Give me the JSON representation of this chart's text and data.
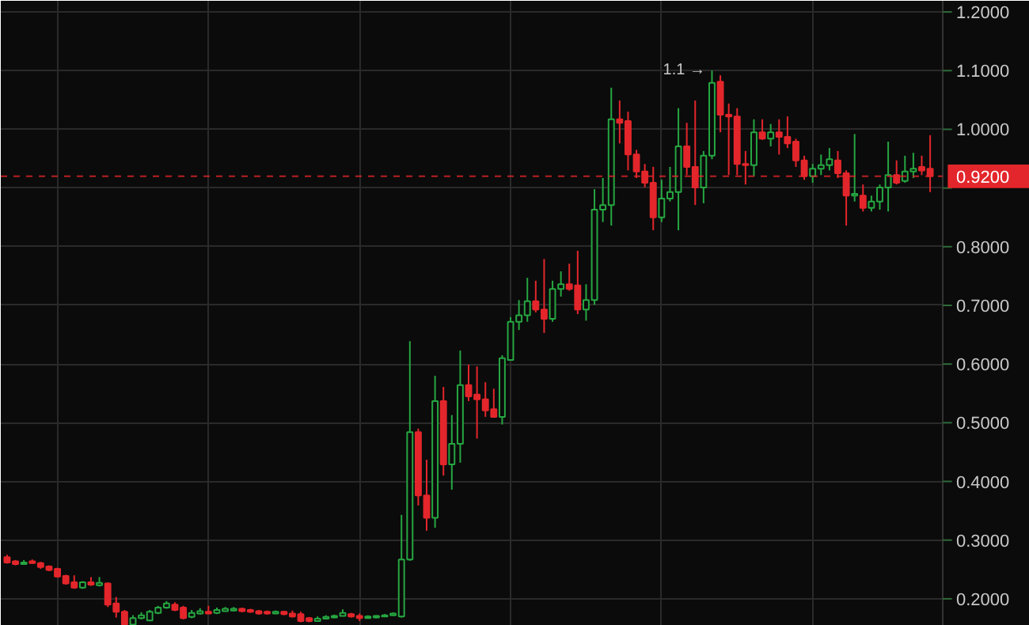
{
  "chart_data": {
    "type": "candlestick",
    "categories": [
      null,
      null,
      null,
      null,
      null,
      null,
      null,
      null,
      null,
      null,
      null,
      null,
      null,
      null,
      null,
      null,
      null,
      null,
      null,
      null,
      null,
      null,
      null,
      null,
      null,
      null,
      null,
      null,
      null,
      null,
      null,
      null,
      null,
      null,
      null,
      null,
      null,
      null,
      null,
      null,
      null,
      null,
      null,
      null,
      null,
      null,
      null,
      null,
      null,
      null,
      null,
      null,
      null,
      null,
      null,
      null,
      null,
      null,
      null,
      null,
      null,
      null,
      null,
      null,
      null,
      null,
      null,
      null,
      null,
      null,
      null,
      null,
      null,
      null,
      null,
      null,
      null,
      null,
      null,
      null,
      null,
      null,
      null,
      null,
      null,
      null,
      null,
      null,
      null,
      null,
      null,
      null,
      null,
      null,
      null,
      null,
      null,
      null,
      null,
      null,
      null,
      null,
      null,
      null,
      null,
      null,
      null,
      null,
      null,
      null,
      null
    ],
    "ohlc": [
      [
        0.271,
        0.275,
        0.26,
        0.262
      ],
      [
        0.264,
        0.266,
        0.257,
        0.259
      ],
      [
        0.259,
        0.266,
        0.258,
        0.262
      ],
      [
        0.264,
        0.267,
        0.26,
        0.261
      ],
      [
        0.261,
        0.263,
        0.251,
        0.254
      ],
      [
        0.255,
        0.257,
        0.247,
        0.249
      ],
      [
        0.251,
        0.253,
        0.236,
        0.238
      ],
      [
        0.239,
        0.241,
        0.224,
        0.226
      ],
      [
        0.228,
        0.24,
        0.217,
        0.219
      ],
      [
        0.219,
        0.23,
        0.217,
        0.228
      ],
      [
        0.228,
        0.237,
        0.222,
        0.224
      ],
      [
        0.223,
        0.237,
        0.221,
        0.227
      ],
      [
        0.226,
        0.228,
        0.186,
        0.19
      ],
      [
        0.192,
        0.203,
        0.168,
        0.178
      ],
      [
        0.178,
        0.181,
        0.155,
        0.156
      ],
      [
        0.156,
        0.172,
        0.155,
        0.167
      ],
      [
        0.167,
        0.177,
        0.165,
        0.172
      ],
      [
        0.163,
        0.181,
        0.162,
        0.178
      ],
      [
        0.176,
        0.188,
        0.174,
        0.185
      ],
      [
        0.185,
        0.196,
        0.183,
        0.192
      ],
      [
        0.19,
        0.194,
        0.179,
        0.181
      ],
      [
        0.185,
        0.188,
        0.165,
        0.167
      ],
      [
        0.169,
        0.181,
        0.167,
        0.176
      ],
      [
        0.175,
        0.184,
        0.173,
        0.179
      ],
      [
        0.178,
        0.188,
        0.174,
        0.175
      ],
      [
        0.176,
        0.185,
        0.174,
        0.181
      ],
      [
        0.179,
        0.186,
        0.178,
        0.183
      ],
      [
        0.18,
        0.186,
        0.179,
        0.183
      ],
      [
        0.183,
        0.185,
        0.177,
        0.179
      ],
      [
        0.181,
        0.183,
        0.176,
        0.178
      ],
      [
        0.179,
        0.181,
        0.173,
        0.175
      ],
      [
        0.178,
        0.18,
        0.173,
        0.175
      ],
      [
        0.175,
        0.18,
        0.174,
        0.178
      ],
      [
        0.178,
        0.179,
        0.172,
        0.174
      ],
      [
        0.175,
        0.18,
        0.168,
        0.17
      ],
      [
        0.174,
        0.178,
        0.16,
        0.162
      ],
      [
        0.167,
        0.169,
        0.16,
        0.162
      ],
      [
        0.162,
        0.17,
        0.161,
        0.166
      ],
      [
        0.166,
        0.172,
        0.165,
        0.169
      ],
      [
        0.168,
        0.173,
        0.167,
        0.171
      ],
      [
        0.171,
        0.182,
        0.17,
        0.176
      ],
      [
        0.174,
        0.176,
        0.168,
        0.17
      ],
      [
        0.171,
        0.175,
        0.162,
        0.167
      ],
      [
        0.167,
        0.172,
        0.166,
        0.17
      ],
      [
        0.168,
        0.172,
        0.167,
        0.171
      ],
      [
        0.17,
        0.174,
        0.169,
        0.172
      ],
      [
        0.172,
        0.177,
        0.171,
        0.175
      ],
      [
        0.17,
        0.343,
        0.168,
        0.267
      ],
      [
        0.267,
        0.639,
        0.265,
        0.484
      ],
      [
        0.484,
        0.49,
        0.359,
        0.376
      ],
      [
        0.376,
        0.437,
        0.316,
        0.338
      ],
      [
        0.338,
        0.58,
        0.321,
        0.537
      ],
      [
        0.537,
        0.561,
        0.41,
        0.429
      ],
      [
        0.429,
        0.513,
        0.386,
        0.464
      ],
      [
        0.464,
        0.623,
        0.432,
        0.564
      ],
      [
        0.564,
        0.599,
        0.537,
        0.545
      ],
      [
        0.548,
        0.596,
        0.473,
        0.54
      ],
      [
        0.54,
        0.569,
        0.51,
        0.521
      ],
      [
        0.523,
        0.558,
        0.51,
        0.51
      ],
      [
        0.51,
        0.615,
        0.497,
        0.61
      ],
      [
        0.607,
        0.68,
        0.607,
        0.672
      ],
      [
        0.672,
        0.709,
        0.658,
        0.683
      ],
      [
        0.683,
        0.747,
        0.672,
        0.707
      ],
      [
        0.707,
        0.742,
        0.688,
        0.693
      ],
      [
        0.693,
        0.779,
        0.653,
        0.677
      ],
      [
        0.677,
        0.742,
        0.672,
        0.728
      ],
      [
        0.728,
        0.758,
        0.715,
        0.736
      ],
      [
        0.736,
        0.771,
        0.725,
        0.728
      ],
      [
        0.734,
        0.793,
        0.685,
        0.693
      ],
      [
        0.693,
        0.736,
        0.674,
        0.709
      ],
      [
        0.709,
        0.898,
        0.701,
        0.863
      ],
      [
        0.863,
        0.917,
        0.842,
        0.871
      ],
      [
        0.871,
        1.071,
        0.836,
        1.017
      ],
      [
        1.017,
        1.049,
        0.976,
        1.011
      ],
      [
        1.014,
        1.03,
        0.93,
        0.957
      ],
      [
        0.957,
        0.965,
        0.917,
        0.928
      ],
      [
        0.928,
        0.941,
        0.901,
        0.909
      ],
      [
        0.909,
        0.936,
        0.828,
        0.85
      ],
      [
        0.85,
        0.914,
        0.842,
        0.882
      ],
      [
        0.882,
        0.936,
        0.877,
        0.893
      ],
      [
        0.893,
        1.036,
        0.828,
        0.971
      ],
      [
        0.971,
        1.011,
        0.922,
        0.936
      ],
      [
        0.936,
        1.049,
        0.871,
        0.901
      ],
      [
        0.901,
        0.963,
        0.874,
        0.955
      ],
      [
        0.955,
        1.1,
        0.949,
        1.079
      ],
      [
        1.081,
        1.092,
        0.995,
        1.025
      ],
      [
        1.025,
        1.044,
        0.922,
        1.022
      ],
      [
        1.022,
        1.036,
        0.922,
        0.941
      ],
      [
        0.941,
        0.963,
        0.906,
        0.939
      ],
      [
        0.939,
        1.017,
        0.92,
        0.995
      ],
      [
        0.995,
        1.017,
        0.982,
        0.984
      ],
      [
        0.984,
        1.009,
        0.971,
        0.995
      ],
      [
        0.995,
        1.017,
        0.957,
        0.987
      ],
      [
        0.987,
        1.022,
        0.968,
        0.976
      ],
      [
        0.979,
        0.984,
        0.936,
        0.947
      ],
      [
        0.947,
        0.955,
        0.914,
        0.92
      ],
      [
        0.92,
        0.941,
        0.909,
        0.933
      ],
      [
        0.933,
        0.957,
        0.922,
        0.939
      ],
      [
        0.939,
        0.968,
        0.93,
        0.949
      ],
      [
        0.947,
        0.963,
        0.917,
        0.925
      ],
      [
        0.925,
        0.93,
        0.836,
        0.887
      ],
      [
        0.887,
        0.992,
        0.877,
        0.89
      ],
      [
        0.887,
        0.906,
        0.86,
        0.866
      ],
      [
        0.866,
        0.887,
        0.86,
        0.877
      ],
      [
        0.877,
        0.906,
        0.863,
        0.901
      ],
      [
        0.901,
        0.979,
        0.86,
        0.922
      ],
      [
        0.922,
        0.947,
        0.906,
        0.909
      ],
      [
        0.912,
        0.955,
        0.909,
        0.928
      ],
      [
        0.928,
        0.96,
        0.917,
        0.933
      ],
      [
        0.936,
        0.955,
        0.922,
        0.93
      ],
      [
        0.933,
        0.99,
        0.893,
        0.92
      ]
    ],
    "colors": [
      "#e3262b",
      "#e3262b",
      "#26a641",
      "#e3262b",
      "#e3262b",
      "#e3262b",
      "#e3262b",
      "#e3262b",
      "#e3262b",
      "#26a641",
      "#e3262b",
      "#26a641",
      "#e3262b",
      "#e3262b",
      "#e3262b",
      "#26a641",
      "#26a641",
      "#26a641",
      "#26a641",
      "#26a641",
      "#e3262b",
      "#e3262b",
      "#26a641",
      "#26a641",
      "#e3262b",
      "#26a641",
      "#26a641",
      "#26a641",
      "#e3262b",
      "#e3262b",
      "#e3262b",
      "#e3262b",
      "#26a641",
      "#e3262b",
      "#e3262b",
      "#e3262b",
      "#e3262b",
      "#26a641",
      "#26a641",
      "#26a641",
      "#26a641",
      "#e3262b",
      "#e3262b",
      "#26a641",
      "#26a641",
      "#26a641",
      "#26a641",
      "#26a641",
      "#26a641",
      "#e3262b",
      "#e3262b",
      "#26a641",
      "#e3262b",
      "#26a641",
      "#26a641",
      "#e3262b",
      "#e3262b",
      "#e3262b",
      "#e3262b",
      "#26a641",
      "#26a641",
      "#26a641",
      "#26a641",
      "#e3262b",
      "#e3262b",
      "#26a641",
      "#26a641",
      "#e3262b",
      "#e3262b",
      "#26a641",
      "#26a641",
      "#26a641",
      "#26a641",
      "#e3262b",
      "#e3262b",
      "#e3262b",
      "#e3262b",
      "#e3262b",
      "#26a641",
      "#26a641",
      "#26a641",
      "#e3262b",
      "#e3262b",
      "#26a641",
      "#26a641",
      "#e3262b",
      "#e3262b",
      "#e3262b",
      "#e3262b",
      "#26a641",
      "#e3262b",
      "#26a641",
      "#e3262b",
      "#e3262b",
      "#e3262b",
      "#e3262b",
      "#26a641",
      "#26a641",
      "#26a641",
      "#e3262b",
      "#e3262b",
      "#26a641",
      "#e3262b",
      "#26a641",
      "#26a641",
      "#26a641",
      "#e3262b",
      "#26a641",
      "#26a641",
      "#e3262b",
      "#e3262b"
    ],
    "ylim": [
      0.154,
      1.219
    ],
    "yticks": [
      {
        "value": 0.2,
        "label": "0.2000"
      },
      {
        "value": 0.3,
        "label": "0.3000"
      },
      {
        "value": 0.4,
        "label": "0.4000"
      },
      {
        "value": 0.5,
        "label": "0.5000"
      },
      {
        "value": 0.6,
        "label": "0.6000"
      },
      {
        "value": 0.7,
        "label": "0.7000"
      },
      {
        "value": 0.8,
        "label": "0.8000"
      },
      {
        "value": 0.9,
        "label": null
      },
      {
        "value": 1.0,
        "label": "1.0000"
      },
      {
        "value": 1.1,
        "label": "1.1000"
      },
      {
        "value": 1.2,
        "label": "1.2000"
      }
    ],
    "grid": true,
    "tick_labels": "y",
    "ref_lines": [
      {
        "axis": "y",
        "value": 0.92,
        "label": "0.9200",
        "color": "#e3262b",
        "line_style": "dashed"
      }
    ],
    "annotations": [
      "1.1 →"
    ]
  }
}
